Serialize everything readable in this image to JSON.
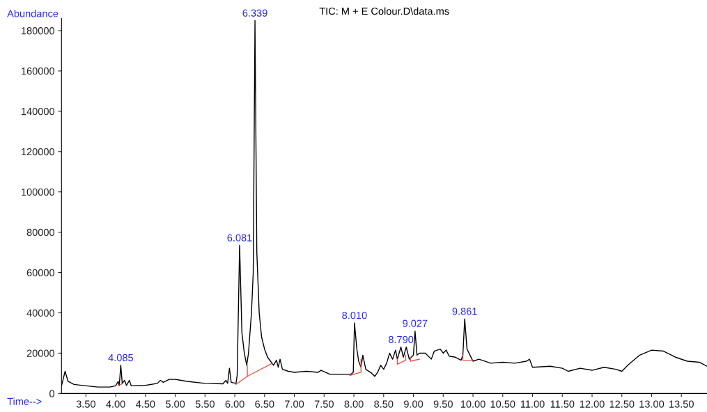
{
  "chart_data": {
    "type": "line",
    "title": "TIC: M + E Colour.D\\data.ms",
    "xlabel": "Time-->",
    "ylabel": "Abundance",
    "xlim": [
      3.09,
      13.93
    ],
    "ylim": [
      0,
      186000
    ],
    "xticks": [
      {
        "value": 3.5,
        "label": "3.50"
      },
      {
        "value": 4.0,
        "label": "4.00"
      },
      {
        "value": 4.5,
        "label": "4.50"
      },
      {
        "value": 5.0,
        "label": "5.00"
      },
      {
        "value": 5.5,
        "label": "5.50"
      },
      {
        "value": 6.0,
        "label": "6.00"
      },
      {
        "value": 6.5,
        "label": "6.50"
      },
      {
        "value": 7.0,
        "label": "7.00"
      },
      {
        "value": 7.5,
        "label": "7.50"
      },
      {
        "value": 8.0,
        "label": "8.00"
      },
      {
        "value": 8.5,
        "label": "8.50"
      },
      {
        "value": 9.0,
        "label": "9.00"
      },
      {
        "value": 9.5,
        "label": "9.50"
      },
      {
        "value": 10.0,
        "label": "10.00"
      },
      {
        "value": 10.5,
        "label": "10.50"
      },
      {
        "value": 11.0,
        "label": "11.00"
      },
      {
        "value": 11.5,
        "label": "11.50"
      },
      {
        "value": 12.0,
        "label": "12.00"
      },
      {
        "value": 12.5,
        "label": "12.50"
      },
      {
        "value": 13.0,
        "label": "13.00"
      },
      {
        "value": 13.5,
        "label": "13.50"
      }
    ],
    "yticks": [
      0,
      20000,
      40000,
      60000,
      80000,
      100000,
      120000,
      140000,
      160000,
      180000
    ],
    "grid": false,
    "legend": false,
    "marker": "none",
    "line_style": "solid",
    "series": [
      {
        "color": "#000000",
        "x": [
          3.09,
          3.15,
          3.2,
          3.3,
          3.5,
          3.7,
          3.9,
          4.0,
          4.04,
          4.06,
          4.085,
          4.11,
          4.15,
          4.18,
          4.23,
          4.26,
          4.5,
          4.7,
          4.75,
          4.8,
          4.9,
          5.0,
          5.2,
          5.5,
          5.8,
          5.85,
          5.88,
          5.91,
          5.94,
          6.02,
          6.04,
          6.081,
          6.12,
          6.16,
          6.2,
          6.23,
          6.28,
          6.31,
          6.339,
          6.37,
          6.41,
          6.45,
          6.5,
          6.55,
          6.6,
          6.65,
          6.7,
          6.73,
          6.76,
          6.8,
          6.9,
          7.0,
          7.2,
          7.4,
          7.45,
          7.6,
          7.8,
          7.95,
          7.99,
          8.01,
          8.05,
          8.08,
          8.12,
          8.15,
          8.2,
          8.3,
          8.35,
          8.4,
          8.45,
          8.5,
          8.55,
          8.6,
          8.65,
          8.7,
          8.73,
          8.79,
          8.83,
          8.88,
          8.93,
          9.0,
          9.027,
          9.06,
          9.1,
          9.2,
          9.3,
          9.35,
          9.45,
          9.5,
          9.55,
          9.6,
          9.7,
          9.8,
          9.83,
          9.861,
          9.9,
          9.95,
          10.0,
          10.1,
          10.3,
          10.5,
          10.7,
          10.9,
          10.95,
          11.0,
          11.3,
          11.5,
          11.6,
          11.8,
          12.0,
          12.2,
          12.4,
          12.5,
          12.6,
          12.8,
          13.0,
          13.2,
          13.4,
          13.6,
          13.8,
          13.93
        ],
        "values": [
          3800,
          11000,
          6000,
          4500,
          3800,
          3200,
          3200,
          3800,
          6000,
          3800,
          14000,
          5000,
          6500,
          4000,
          6500,
          3800,
          4000,
          5000,
          6500,
          5500,
          7000,
          7000,
          6000,
          5000,
          4800,
          6500,
          5000,
          12500,
          5500,
          5000,
          9000,
          73500,
          30000,
          20000,
          14000,
          20000,
          40000,
          60000,
          185000,
          70000,
          40000,
          28000,
          22000,
          18000,
          16000,
          14000,
          16500,
          13000,
          17000,
          12000,
          11000,
          10500,
          11000,
          10500,
          11500,
          9500,
          9500,
          9500,
          10500,
          35000,
          22000,
          16000,
          13000,
          19000,
          12000,
          10000,
          8500,
          10500,
          14000,
          12000,
          15000,
          20000,
          17000,
          21500,
          17000,
          23000,
          18000,
          23000,
          17000,
          19000,
          31000,
          19000,
          20000,
          20000,
          17000,
          21000,
          22000,
          20000,
          21500,
          18500,
          18000,
          16500,
          19000,
          37000,
          22000,
          19000,
          16000,
          17000,
          15000,
          15500,
          15000,
          16000,
          17000,
          13000,
          13500,
          12500,
          11000,
          12500,
          11500,
          13000,
          12000,
          11000,
          14000,
          19000,
          21500,
          21000,
          18000,
          16000,
          15500,
          13500
        ]
      },
      {
        "color": "#e8524a",
        "x": [
          4.05,
          4.12
        ],
        "values": [
          4000,
          5000
        ]
      },
      {
        "color": "#e8524a",
        "x": [
          6.02,
          6.21,
          6.63
        ],
        "values": [
          4500,
          8500,
          15000
        ]
      },
      {
        "color": "#e8524a",
        "x": [
          6.21,
          6.21
        ],
        "values": [
          8500,
          14000
        ]
      },
      {
        "color": "#e8524a",
        "x": [
          7.93,
          8.12,
          8.12
        ],
        "values": [
          9000,
          10500,
          17000
        ]
      },
      {
        "color": "#e8524a",
        "x": [
          8.73,
          8.73,
          8.87,
          8.87
        ],
        "values": [
          17000,
          14500,
          16500,
          19000
        ]
      },
      {
        "color": "#e8524a",
        "x": [
          8.95,
          8.95,
          9.1
        ],
        "values": [
          18000,
          16000,
          17000
        ]
      },
      {
        "color": "#e8524a",
        "x": [
          9.83,
          9.83,
          10.0
        ],
        "values": [
          19000,
          16500,
          16500
        ]
      }
    ],
    "annotations": [
      {
        "text": "4.085",
        "x": 4.085,
        "y": 14000
      },
      {
        "text": "6.081",
        "x": 6.081,
        "y": 73500
      },
      {
        "text": "6.339",
        "x": 6.339,
        "y": 185000
      },
      {
        "text": "8.010",
        "x": 8.01,
        "y": 35000
      },
      {
        "text": "8.790",
        "x": 8.79,
        "y": 23000
      },
      {
        "text": "9.027",
        "x": 9.027,
        "y": 31000
      },
      {
        "text": "9.861",
        "x": 9.861,
        "y": 37000
      }
    ]
  }
}
